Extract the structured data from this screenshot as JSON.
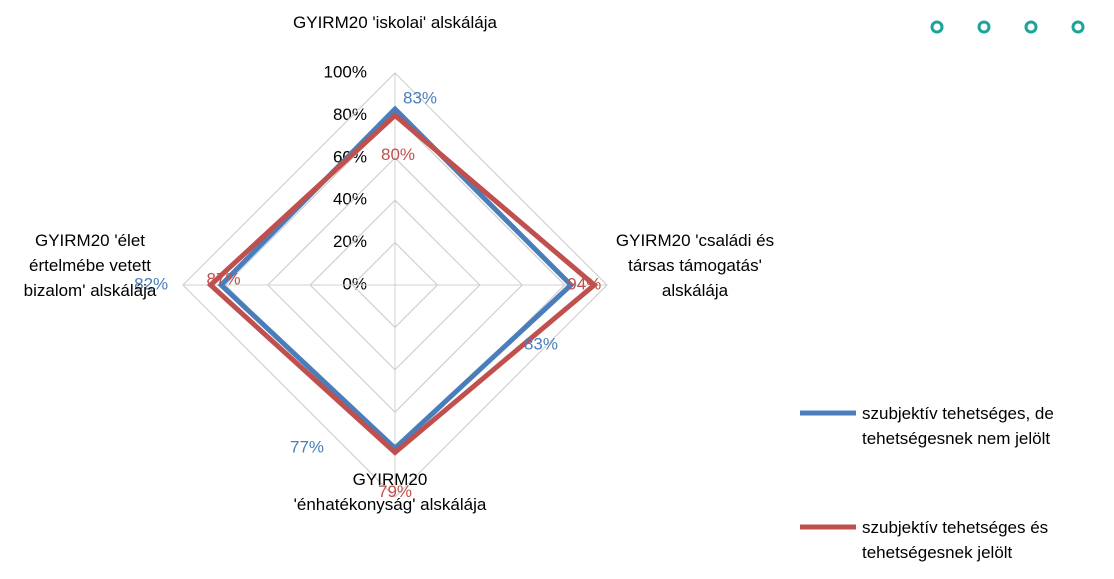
{
  "chart_data": {
    "type": "radar",
    "categories": [
      "GYIRM20 'iskolai' alskálája",
      "GYIRM20 'családi és társas támogatás' alskálája",
      "GYIRM20 'énhatékonyság' alskálája",
      "GYIRM20 'élet értelmébe vetett bizalom' alskálája"
    ],
    "series": [
      {
        "name": "szubjektív tehetséges, de tehetségesnek nem jelölt",
        "color": "#4a7ebb",
        "values": [
          83,
          83,
          77,
          82
        ],
        "value_labels": [
          "83%",
          "83%",
          "77%",
          "82%"
        ]
      },
      {
        "name": "szubjektív tehetséges és tehetségesnek jelölt",
        "color": "#c0504d",
        "values": [
          80,
          94,
          79,
          87
        ],
        "value_labels": [
          "80%",
          "94%",
          "79%",
          "87%"
        ]
      }
    ],
    "rlim": [
      0,
      100
    ],
    "rticks": [
      {
        "value": 0,
        "label": "0%"
      },
      {
        "value": 20,
        "label": "20%"
      },
      {
        "value": 40,
        "label": "40%"
      },
      {
        "value": 60,
        "label": "60%"
      },
      {
        "value": 80,
        "label": "80%"
      },
      {
        "value": 100,
        "label": "100%"
      }
    ],
    "grid": true,
    "legend": "right"
  }
}
